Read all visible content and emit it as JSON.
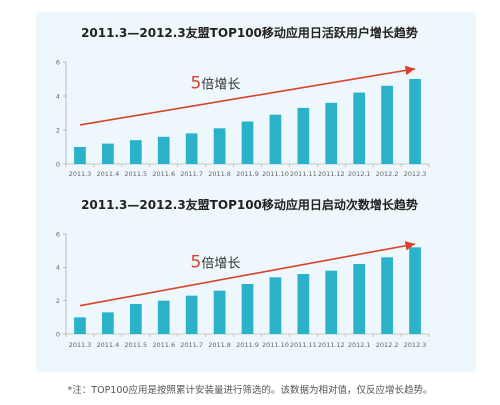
{
  "footnote": "*注：TOP100应用是按照累计安装量进行筛选的。该数据为相对值，仅反应增长趋势。",
  "colors": {
    "bar": "#29b2c9",
    "arrow": "#d9412b",
    "axis": "#999999",
    "panel": "#eef7fb"
  },
  "chart_data": [
    {
      "type": "bar",
      "title": "2011.3—2012.3友盟TOP100移动应用日活跃用户增长趋势",
      "categories": [
        "2011.3",
        "2011.4",
        "2011.5",
        "2011.6",
        "2011.7",
        "2011.8",
        "2011.9",
        "2011.10",
        "2011.11",
        "2011.12",
        "2012.1",
        "2012.2",
        "2012.3"
      ],
      "values": [
        1.0,
        1.2,
        1.4,
        1.6,
        1.8,
        2.1,
        2.5,
        2.9,
        3.3,
        3.6,
        4.2,
        4.6,
        5.0
      ],
      "ylim": [
        0,
        6
      ],
      "yticks": [
        "0",
        "2",
        "4",
        "6"
      ],
      "annotation": {
        "number": "5",
        "text": "倍增长"
      },
      "arrow": {
        "from": [
          0.5,
          2.3
        ],
        "to": [
          12.5,
          5.6
        ]
      }
    },
    {
      "type": "bar",
      "title": "2011.3—2012.3友盟TOP100移动应用日启动次数增长趋势",
      "categories": [
        "2011.3",
        "2011.4",
        "2011.5",
        "2011.6",
        "2011.7",
        "2011.8",
        "2011.9",
        "2011.10",
        "2011.11",
        "2011.12",
        "2012.1",
        "2012.2",
        "2012.3"
      ],
      "values": [
        1.0,
        1.3,
        1.8,
        2.0,
        2.3,
        2.6,
        3.0,
        3.4,
        3.6,
        3.8,
        4.2,
        4.6,
        5.2
      ],
      "ylim": [
        0,
        6
      ],
      "yticks": [
        "0",
        "2",
        "4",
        "6"
      ],
      "annotation": {
        "number": "5",
        "text": "倍增长"
      },
      "arrow": {
        "from": [
          0.5,
          1.7
        ],
        "to": [
          12.5,
          5.4
        ]
      }
    }
  ]
}
